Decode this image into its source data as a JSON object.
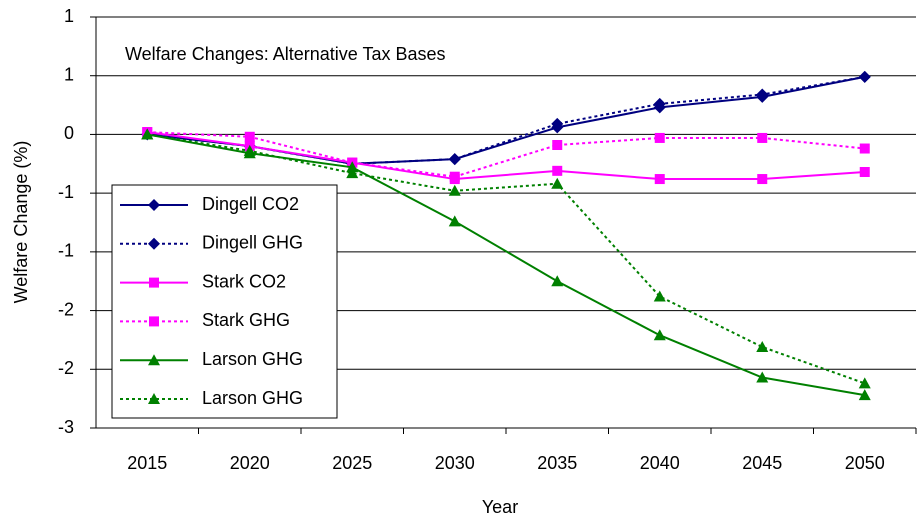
{
  "chart_data": {
    "type": "line",
    "title": "Welfare Changes: Alternative Tax Bases",
    "x_label": "Year",
    "y_label": "Welfare Change (%)",
    "categories": [
      "2015",
      "2020",
      "2025",
      "2030",
      "2035",
      "2040",
      "2045",
      "2050"
    ],
    "series": [
      {
        "name": "Dingell CO2",
        "color": "#000080",
        "line_style": "solid",
        "marker": "diamond",
        "values": [
          0,
          -0.1,
          -0.25,
          -0.21,
          0.06,
          0.23,
          0.32,
          0.49
        ]
      },
      {
        "name": "Dingell GHG",
        "color": "#000080",
        "line_style": "dotted",
        "marker": "diamond",
        "values": [
          0,
          -0.1,
          -0.25,
          -0.21,
          0.09,
          0.26,
          0.34,
          0.49
        ]
      },
      {
        "name": "Stark CO2",
        "color": "#ff00ff",
        "line_style": "solid",
        "marker": "square",
        "values": [
          0.02,
          -0.1,
          -0.24,
          -0.38,
          -0.31,
          -0.38,
          -0.38,
          -0.32
        ]
      },
      {
        "name": "Stark GHG",
        "color": "#ff00ff",
        "line_style": "dotted",
        "marker": "square",
        "values": [
          0.02,
          -0.02,
          -0.24,
          -0.36,
          -0.09,
          -0.03,
          -0.03,
          -0.12
        ]
      },
      {
        "name": "Larson GHG",
        "color": "#008000",
        "line_style": "solid",
        "marker": "triangle",
        "values": [
          0,
          -0.16,
          -0.28,
          -0.74,
          -1.25,
          -1.71,
          -2.07,
          -2.22
        ]
      },
      {
        "name": "Larson GHG",
        "color": "#008000",
        "line_style": "dotted",
        "marker": "triangle",
        "values": [
          0,
          -0.14,
          -0.33,
          -0.48,
          -0.42,
          -1.38,
          -1.81,
          -2.12
        ]
      }
    ],
    "ylim": [
      -2.5,
      1.0
    ],
    "yticks": [
      {
        "value": -2.5,
        "label": "-3"
      },
      {
        "value": -2.0,
        "label": "-2"
      },
      {
        "value": -1.5,
        "label": "-2"
      },
      {
        "value": -1.0,
        "label": "-1"
      },
      {
        "value": -0.5,
        "label": "-1"
      },
      0,
      {
        "value": 0.5,
        "label": "1"
      },
      {
        "value": 1.0,
        "label": "1"
      }
    ],
    "grid": true,
    "legend_position": "lower-left"
  }
}
